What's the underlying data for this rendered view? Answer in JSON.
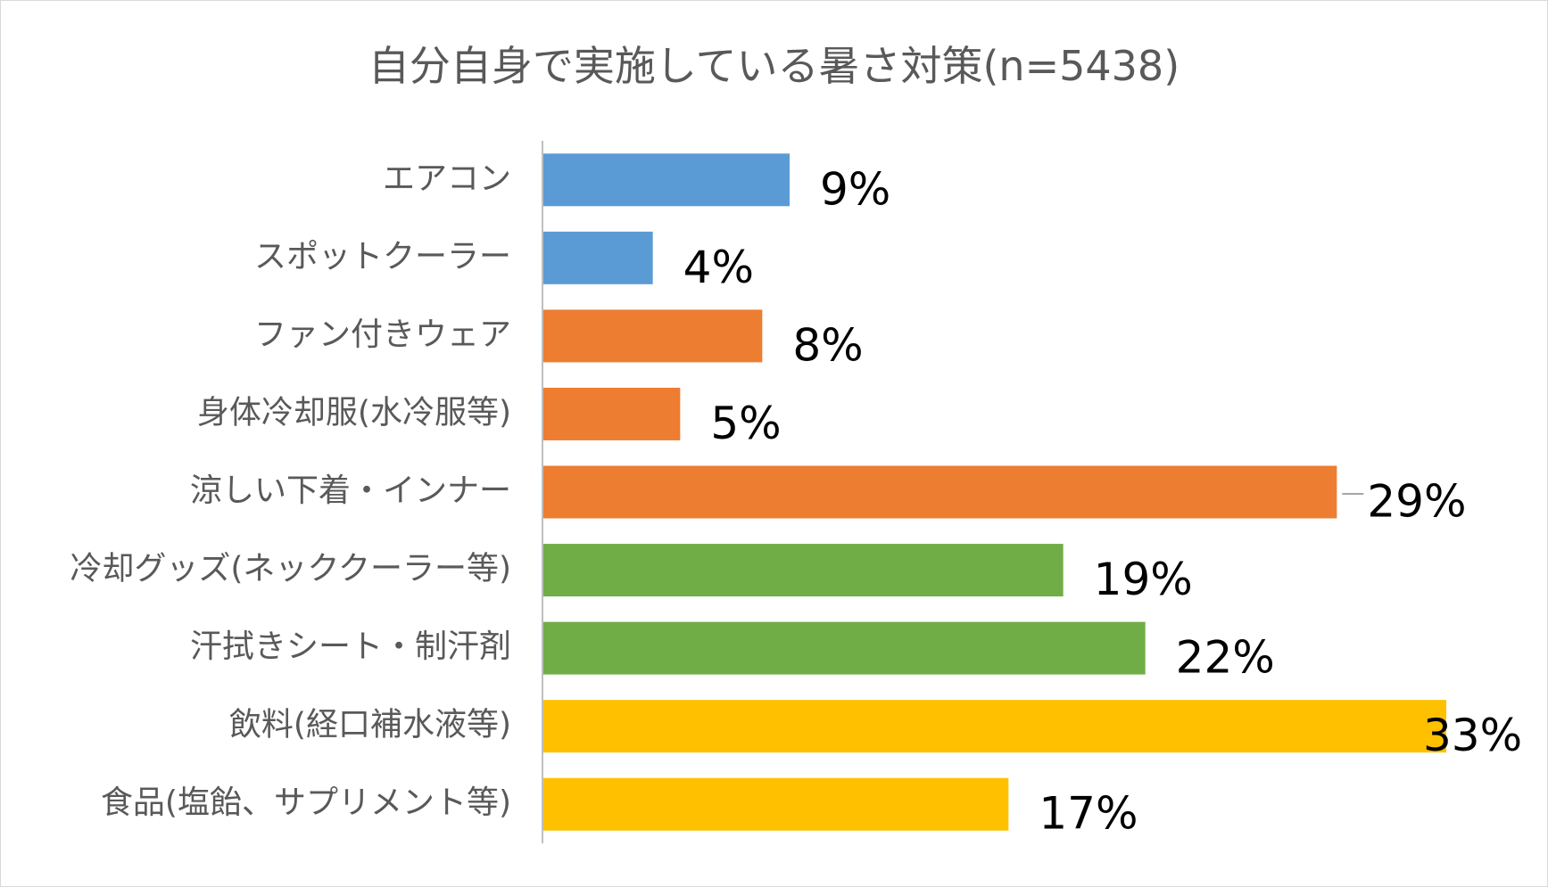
{
  "chart_data": {
    "type": "bar",
    "orientation": "horizontal",
    "title": "自分自身で実施している暑さ対策(n=5438)",
    "categories": [
      "エアコン",
      "スポットクーラー",
      "ファン付きウェア",
      "身体冷却服(水冷服等)",
      "涼しい下着・インナー",
      "冷却グッズ(ネッククーラー等)",
      "汗拭きシート・制汗剤",
      "飲料(経口補水液等)",
      "食品(塩飴、サプリメント等)"
    ],
    "values": [
      9,
      4,
      8,
      5,
      29,
      19,
      22,
      33,
      17
    ],
    "value_labels": [
      "9%",
      "4%",
      "8%",
      "5%",
      "29%",
      "19%",
      "22%",
      "33%",
      "17%"
    ],
    "unit": "%",
    "colors": [
      "#5B9BD5",
      "#5B9BD5",
      "#ED7D31",
      "#ED7D31",
      "#ED7D31",
      "#70AD47",
      "#70AD47",
      "#FFC000",
      "#FFC000"
    ],
    "xlim": [
      0,
      33
    ],
    "grid": false,
    "legend": "none"
  }
}
